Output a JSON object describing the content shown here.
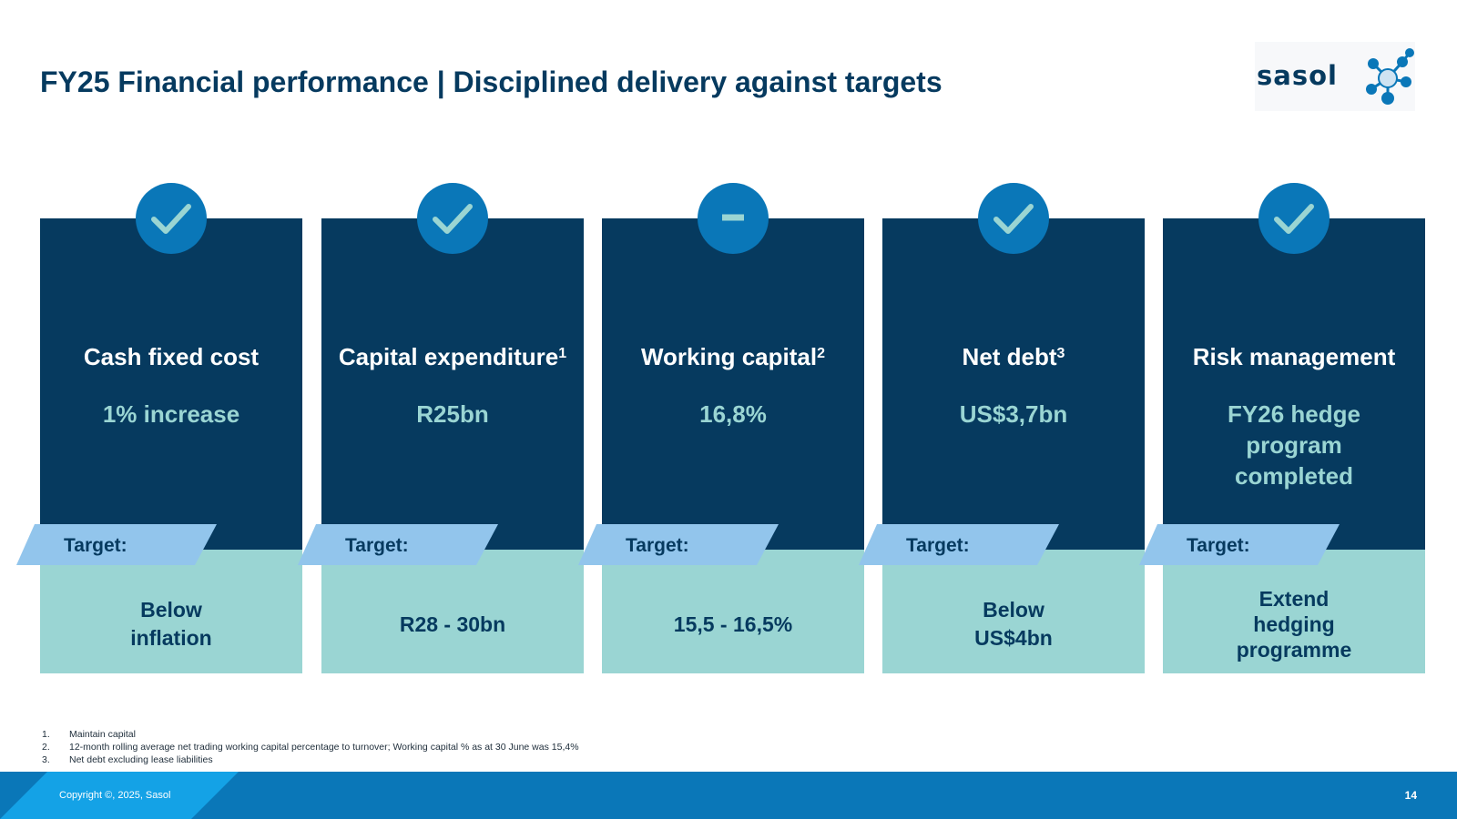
{
  "slide": {
    "title": "FY25 Financial performance | Disciplined delivery against targets",
    "logo_text": "sasol"
  },
  "cards": [
    {
      "status": "check-icon",
      "metric": "Cash fixed cost",
      "sup": "",
      "value": "1% increase",
      "target_label": "Target:",
      "target": "Below inflation"
    },
    {
      "status": "check-icon",
      "metric": "Capital expenditure",
      "sup": "1",
      "value": "R25bn",
      "target_label": "Target:",
      "target": "R28 - 30bn"
    },
    {
      "status": "minus-icon",
      "metric": "Working capital",
      "sup": "2",
      "value": "16,8%",
      "target_label": "Target:",
      "target": "15,5 - 16,5%"
    },
    {
      "status": "check-icon",
      "metric": "Net debt",
      "sup": "3",
      "value": "US$3,7bn",
      "target_label": "Target:",
      "target": "Below US$4bn"
    },
    {
      "status": "check-icon",
      "metric": "Risk management",
      "sup": "",
      "value": "FY26 hedge program completed",
      "target_label": "Target:",
      "target": "Extend hedging programme"
    }
  ],
  "footnotes": [
    {
      "num": "1.",
      "text": "Maintain capital"
    },
    {
      "num": "2.",
      "text": "12-month rolling average net trading working capital percentage to turnover; Working capital % as at 30 June was 15,4%"
    },
    {
      "num": "3.",
      "text": "Net debt excluding lease liabilities"
    }
  ],
  "footer": {
    "copyright": "Copyright ©, 2025, Sasol",
    "page_number": "14"
  },
  "colors": {
    "navy": "#063a5f",
    "teal": "#9ad5d3",
    "blue": "#0a77b8",
    "light_blue": "#92c5ec"
  }
}
